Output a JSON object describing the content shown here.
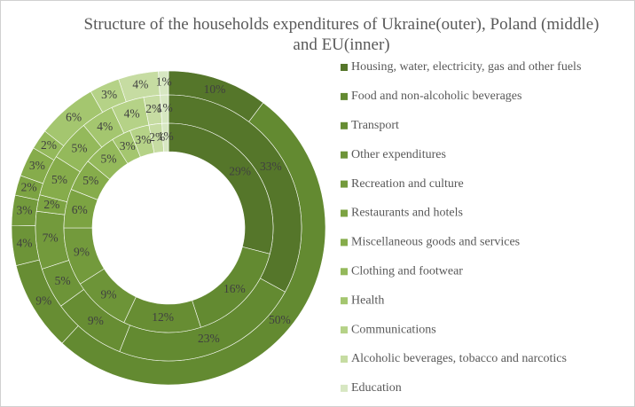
{
  "chart_data": {
    "type": "doughnut",
    "title": "Structure of the households expenditures of Ukraine(outer), Poland (middle) and EU(inner)",
    "categories": [
      "Housing, water, electricity, gas and other fuels",
      "Food and non-alcoholic beverages",
      "Transport",
      "Other expenditures",
      "Recreation and culture",
      "Restaurants and hotels",
      "Miscellaneous goods and services",
      "Clothing and footwear",
      "Health",
      "Communications",
      "Alcoholic beverages, tobacco and narcotics",
      "Education"
    ],
    "colors": [
      "#55762a",
      "#638a31",
      "#678d33",
      "#6d9438",
      "#739a3c",
      "#7ca342",
      "#86ac4b",
      "#94b95b",
      "#a4c66f",
      "#b5d287",
      "#c6dca2",
      "#d7e7c2"
    ],
    "series": [
      {
        "values": [
          10,
          50,
          9,
          4,
          3,
          2,
          3,
          2,
          6,
          3,
          4,
          1
        ],
        "value_labels": [
          "10%",
          "50%",
          "9%",
          "4%",
          "3%",
          "2%",
          "3%",
          "2%",
          "6%",
          "3%",
          "4%",
          "1%"
        ]
      },
      {
        "values": [
          33,
          23,
          9,
          5,
          7,
          2,
          5,
          5,
          4,
          4,
          2,
          1
        ],
        "value_labels": [
          "33%",
          "23%",
          "9%",
          "5%",
          "7%",
          "2%",
          "5%",
          "5%",
          "4%",
          "4%",
          "2%",
          "1%"
        ]
      },
      {
        "values": [
          29,
          16,
          12,
          9,
          9,
          6,
          5,
          5,
          3,
          3,
          2,
          1
        ],
        "value_labels": [
          "29%",
          "16%",
          "12%",
          "9%",
          "9%",
          "6%",
          "5%",
          "5%",
          "3%",
          "3%",
          "2%",
          "1%"
        ]
      }
    ],
    "legend": "right"
  }
}
